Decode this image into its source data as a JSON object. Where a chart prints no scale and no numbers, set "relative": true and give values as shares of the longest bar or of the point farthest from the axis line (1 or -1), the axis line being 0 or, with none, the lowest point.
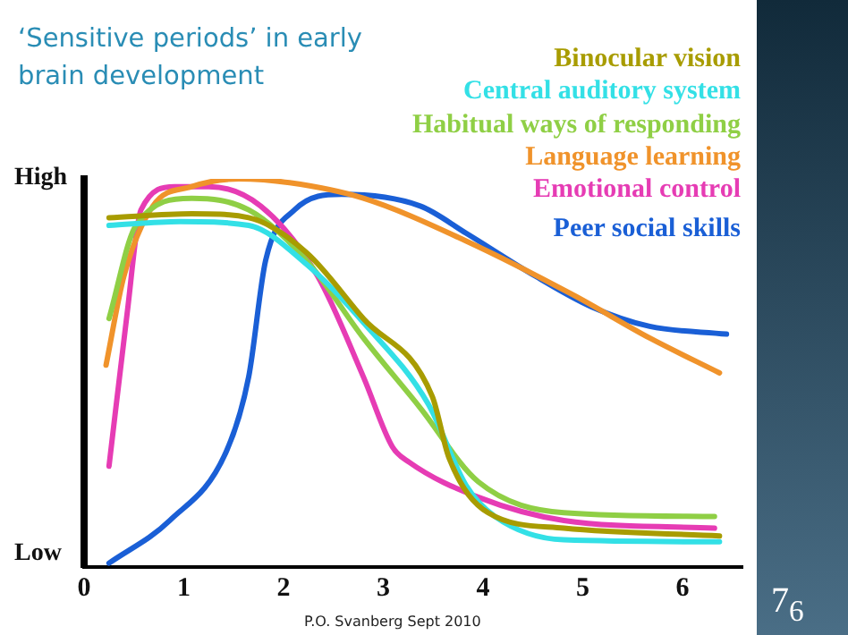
{
  "chart_data": {
    "type": "line",
    "title": "‘Sensitive periods’ in early brain development",
    "relative": true,
    "legend": "top right",
    "marker": "none",
    "line_style": "solid",
    "grid": false,
    "xlim": [
      0,
      6.6
    ],
    "xticks": [
      0,
      1,
      2,
      3,
      4,
      5,
      6
    ],
    "annotations": [
      "High",
      "Low",
      "P.O. Svanberg Sept 2010",
      "7$_{6}$"
    ],
    "series": [
      {
        "name": "Binocular vision",
        "color": "#a89c00",
        "x": [
          0.25,
          1.08,
          1.65,
          2.23,
          2.8,
          3.49,
          3.66,
          4.05,
          4.81,
          6.37
        ],
        "values": [
          0.9,
          0.91,
          0.9,
          0.81,
          0.64,
          0.44,
          0.28,
          0.14,
          0.1,
          0.08
        ]
      },
      {
        "name": "Central auditory system",
        "color": "#33e0e6",
        "x": [
          0.25,
          0.96,
          1.65,
          2.23,
          2.8,
          3.45,
          3.83,
          4.12,
          4.81,
          6.37
        ],
        "values": [
          0.88,
          0.89,
          0.88,
          0.78,
          0.63,
          0.42,
          0.21,
          0.13,
          0.07,
          0.065
        ]
      },
      {
        "name": "Habitual ways of responding",
        "color": "#8fcf45",
        "x": [
          0.25,
          0.52,
          1.08,
          1.65,
          2.23,
          2.8,
          3.37,
          3.95,
          4.81,
          6.32
        ],
        "values": [
          0.64,
          0.88,
          0.95,
          0.92,
          0.79,
          0.59,
          0.41,
          0.22,
          0.14,
          0.13
        ]
      },
      {
        "name": "Language learning",
        "color": "#f0932b",
        "x": [
          0.22,
          0.4,
          0.69,
          1.08,
          1.55,
          2.06,
          2.8,
          3.83,
          4.91,
          5.67,
          6.37
        ],
        "values": [
          0.52,
          0.75,
          0.93,
          0.98,
          1,
          0.99,
          0.95,
          0.84,
          0.7,
          0.59,
          0.5
        ]
      },
      {
        "name": "Emotional control",
        "color": "#e63cb4",
        "x": [
          0.25,
          0.43,
          0.57,
          0.91,
          1.25,
          1.77,
          2.34,
          2.8,
          3.09,
          3.26,
          3.95,
          4.81,
          6.32
        ],
        "values": [
          0.26,
          0.65,
          0.92,
          0.98,
          0.98,
          0.93,
          0.75,
          0.49,
          0.31,
          0.27,
          0.18,
          0.12,
          0.1
        ]
      },
      {
        "name": "Peer social skills",
        "color": "#1a5fd6",
        "x": [
          0.25,
          0.86,
          1.43,
          1.65,
          1.82,
          2.11,
          2.58,
          3.37,
          3.83,
          4.52,
          5.09,
          5.67,
          6.44
        ],
        "values": [
          0.01,
          0.12,
          0.3,
          0.49,
          0.79,
          0.92,
          0.96,
          0.93,
          0.86,
          0.75,
          0.67,
          0.62,
          0.6
        ]
      }
    ]
  }
}
